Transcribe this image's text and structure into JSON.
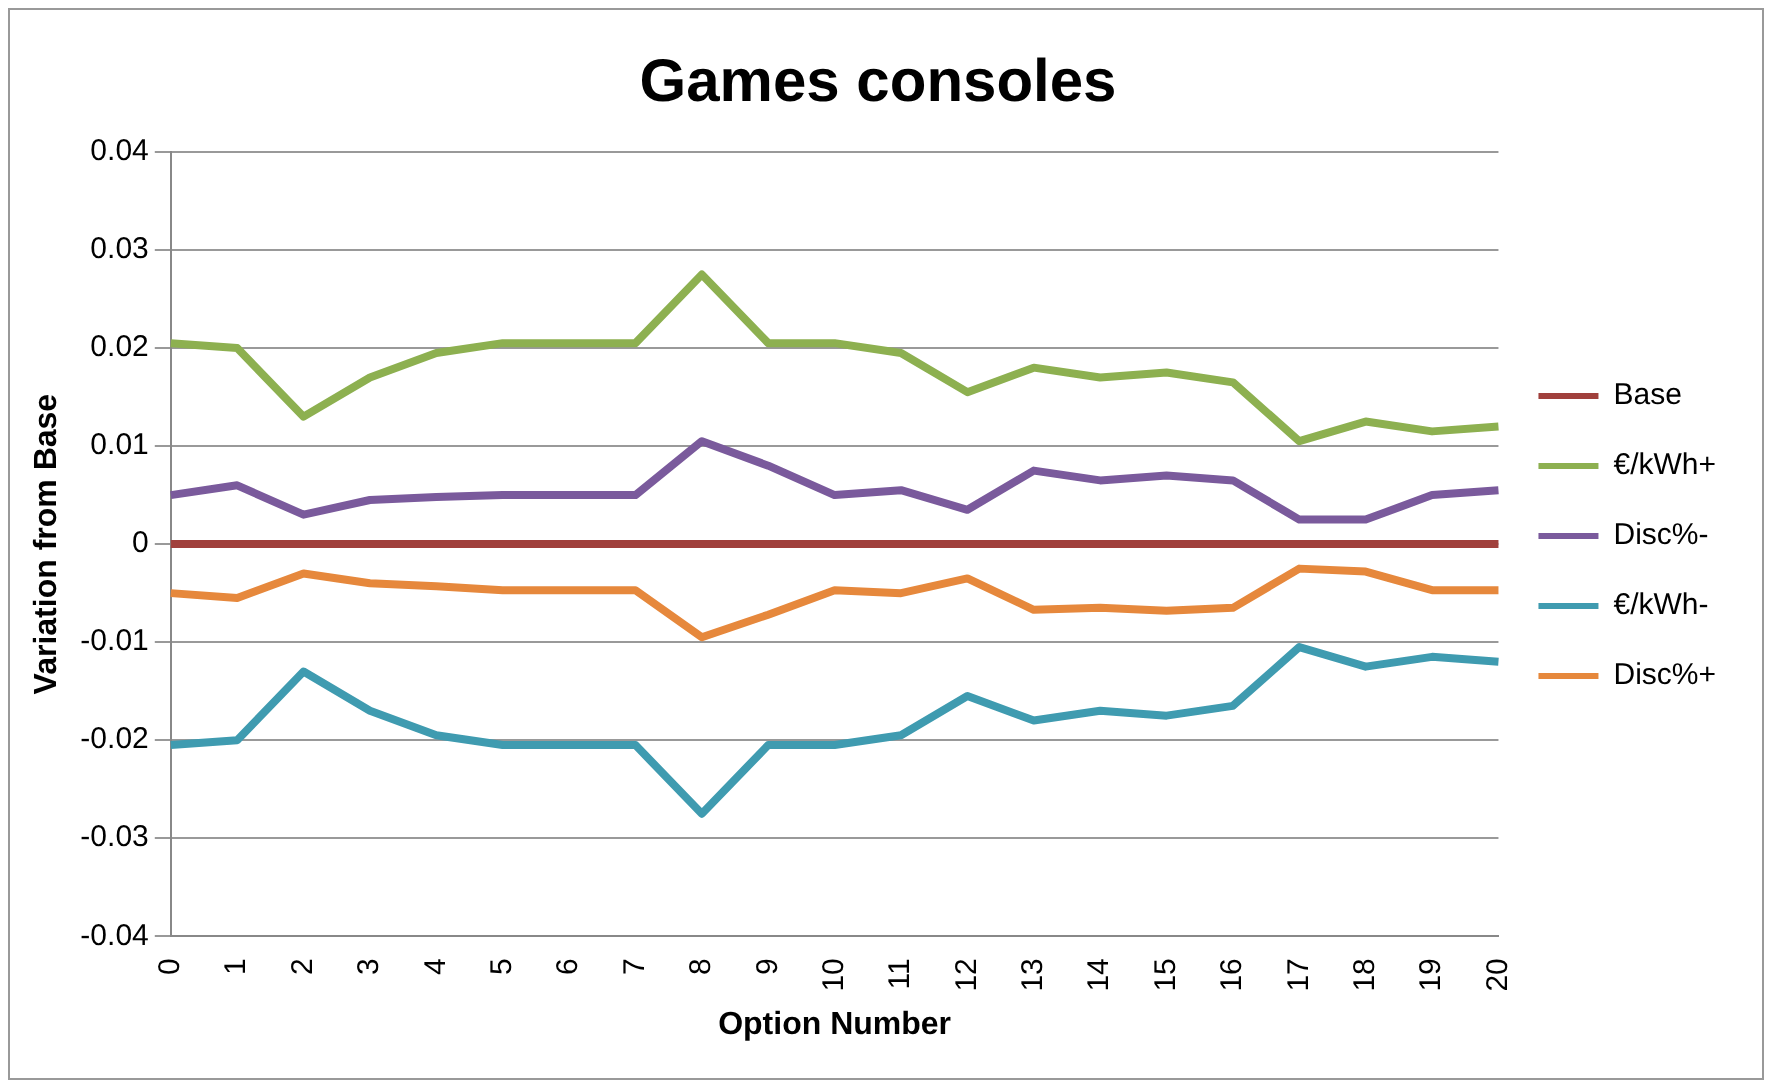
{
  "chart_data": {
    "type": "line",
    "title": "Games consoles",
    "xlabel": "Option Number",
    "ylabel": "Variation from Base",
    "categories": [
      "0",
      "1",
      "2",
      "3",
      "4",
      "5",
      "6",
      "7",
      "8",
      "9",
      "10",
      "11",
      "12",
      "13",
      "14",
      "15",
      "16",
      "17",
      "18",
      "19",
      "20"
    ],
    "series": [
      {
        "name": "Base",
        "color": "#a0403c",
        "values": [
          0,
          0,
          0,
          0,
          0,
          0,
          0,
          0,
          0,
          0,
          0,
          0,
          0,
          0,
          0,
          0,
          0,
          0,
          0,
          0,
          0
        ]
      },
      {
        "name": "€/kWh+",
        "color": "#8db050",
        "values": [
          0.0205,
          0.02,
          0.013,
          0.017,
          0.0195,
          0.0205,
          0.0205,
          0.0205,
          0.0275,
          0.0205,
          0.0205,
          0.0195,
          0.0155,
          0.018,
          0.017,
          0.0175,
          0.0165,
          0.0105,
          0.0125,
          0.0115,
          0.012
        ]
      },
      {
        "name": "Disc%-",
        "color": "#7a5a9c",
        "values": [
          0.005,
          0.006,
          0.003,
          0.0045,
          0.0048,
          0.005,
          0.005,
          0.005,
          0.0105,
          0.008,
          0.005,
          0.0055,
          0.0035,
          0.0075,
          0.0065,
          0.007,
          0.0065,
          0.0025,
          0.0025,
          0.005,
          0.0055
        ]
      },
      {
        "name": "€/kWh-",
        "color": "#3f9bb0",
        "values": [
          -0.0205,
          -0.02,
          -0.013,
          -0.017,
          -0.0195,
          -0.0205,
          -0.0205,
          -0.0205,
          -0.0275,
          -0.0205,
          -0.0205,
          -0.0195,
          -0.0155,
          -0.018,
          -0.017,
          -0.0175,
          -0.0165,
          -0.0105,
          -0.0125,
          -0.0115,
          -0.012
        ]
      },
      {
        "name": "Disc%+",
        "color": "#e6883c",
        "values": [
          -0.005,
          -0.0055,
          -0.003,
          -0.004,
          -0.0043,
          -0.0047,
          -0.0047,
          -0.0047,
          -0.0095,
          -0.0072,
          -0.0047,
          -0.005,
          -0.0035,
          -0.0067,
          -0.0065,
          -0.0068,
          -0.0065,
          -0.0025,
          -0.0028,
          -0.0047,
          -0.0047
        ]
      }
    ],
    "ylim": [
      -0.04,
      0.04
    ],
    "yticks": [
      0.04,
      0.03,
      0.02,
      0.01,
      {
        "value": 0,
        "label": "0"
      },
      -0.01,
      -0.02,
      -0.03,
      -0.04
    ],
    "grid": "y",
    "legend": "right",
    "marker": "none",
    "line_style": "solid"
  }
}
